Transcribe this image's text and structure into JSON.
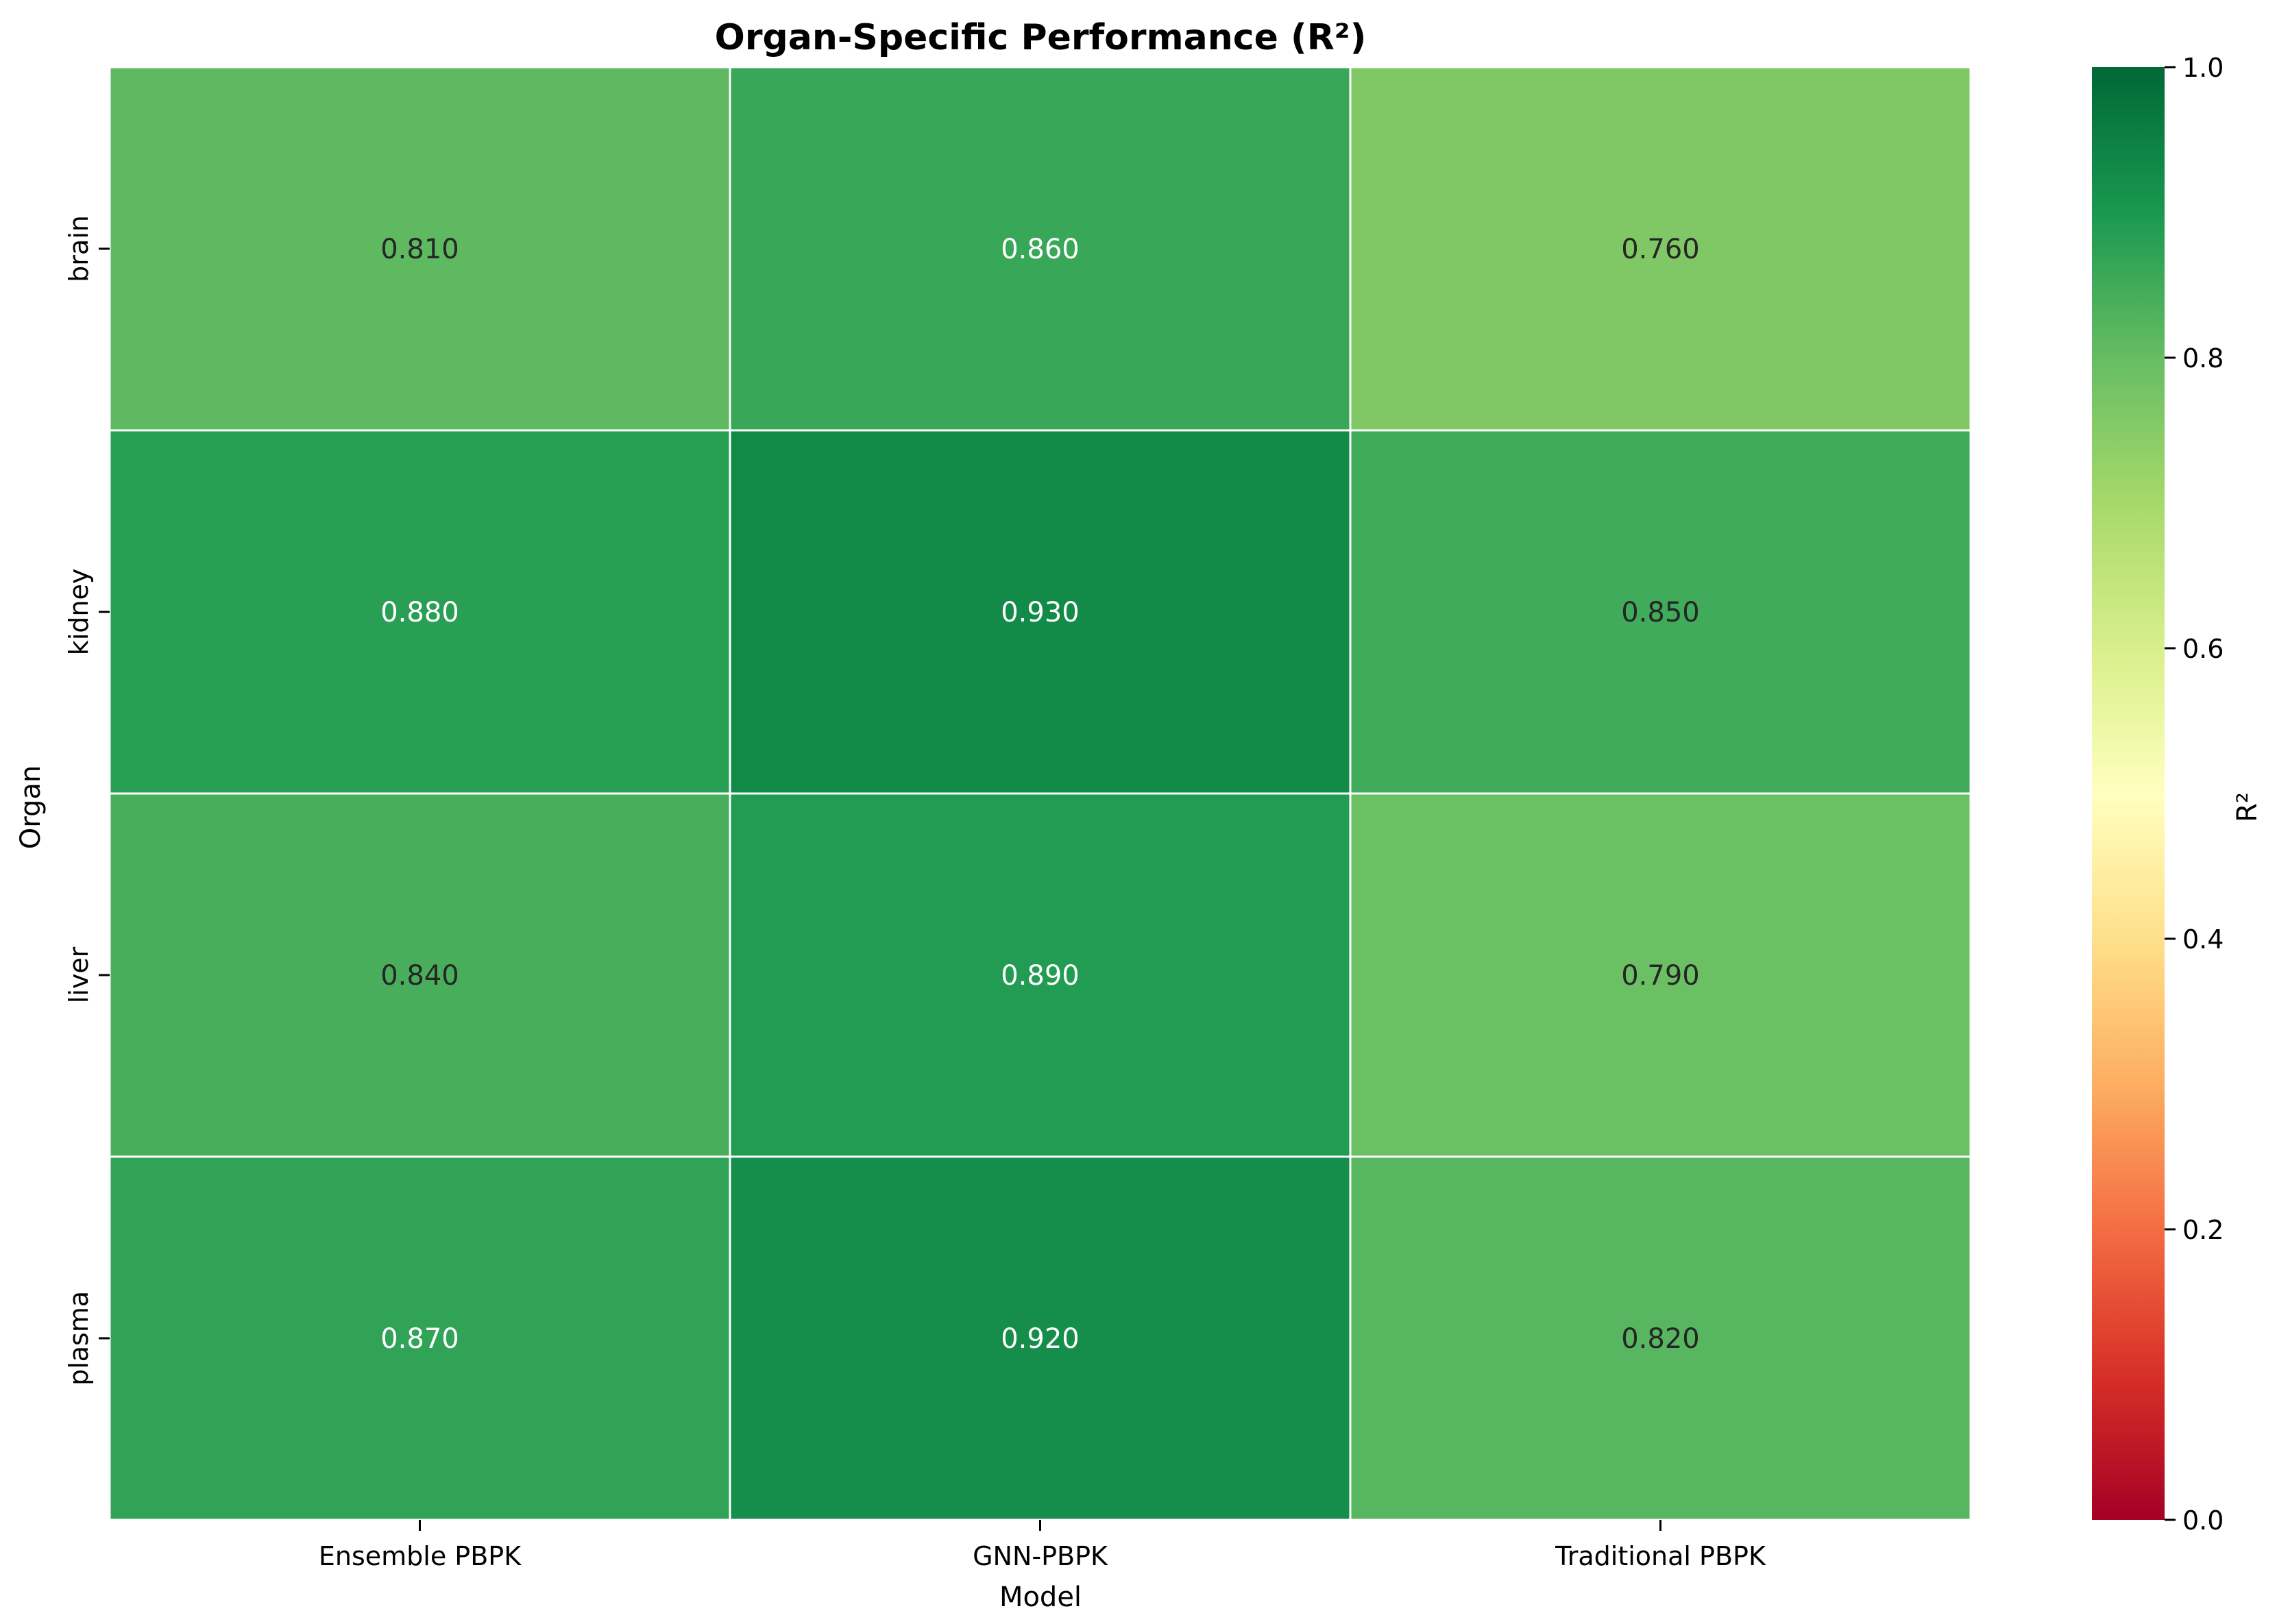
{
  "chart_data": {
    "type": "heatmap",
    "title": "Organ-Specific Performance (R²)",
    "xlabel": "Model",
    "ylabel": "Organ",
    "x_categories": [
      "Ensemble PBPK",
      "GNN-PBPK",
      "Traditional PBPK"
    ],
    "y_categories": [
      "brain",
      "kidney",
      "liver",
      "plasma"
    ],
    "values": [
      [
        0.81,
        0.86,
        0.76
      ],
      [
        0.88,
        0.93,
        0.85
      ],
      [
        0.84,
        0.89,
        0.79
      ],
      [
        0.87,
        0.92,
        0.82
      ]
    ],
    "value_format": "0.000",
    "colorbar": {
      "label": "R²",
      "colormap": "RdYlGn",
      "range": [
        0.0,
        1.0
      ],
      "ticks": [
        0.0,
        0.2,
        0.4,
        0.6,
        0.8,
        1.0
      ]
    },
    "cell_border_color": "#ffffff"
  }
}
